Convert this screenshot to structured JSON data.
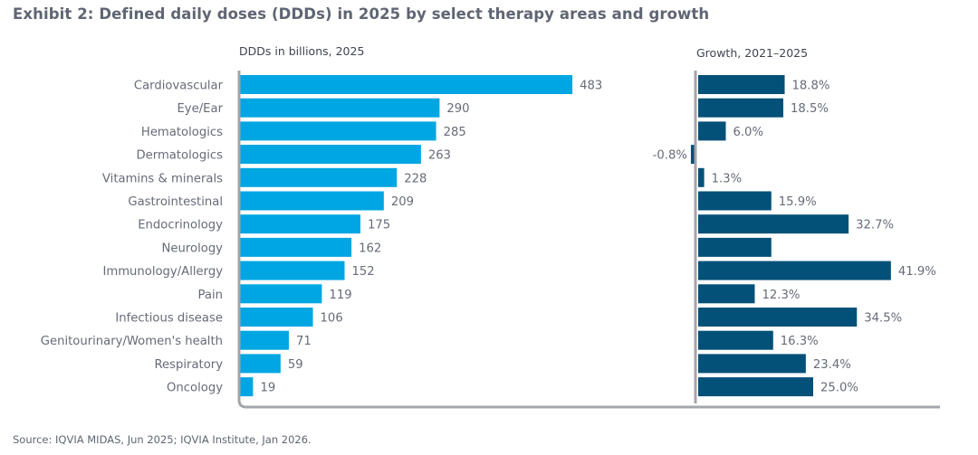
{
  "title": "Exhibit 2: Defined daily doses (DDDs) in 2025 by select therapy areas and growth",
  "source": "Source: IQVIA MIDAS, Jun 2025; IQVIA Institute, Jan 2026.",
  "colors": {
    "ddd_bar": "#00a6e2",
    "growth_bar": "#035078",
    "axis": "#a3a6ad",
    "text": "#666b78"
  },
  "chart_data": [
    {
      "type": "bar",
      "orientation": "horizontal",
      "title": "DDDs in billions, 2025",
      "xlabel": "",
      "ylabel": "",
      "categories": [
        "Cardiovascular",
        "Eye/Ear",
        "Hematologics",
        "Dermatologics",
        "Vitamins & minerals",
        "Gastrointestinal",
        "Endocrinology",
        "Neurology",
        "Immunology/Allergy",
        "Pain",
        "Infectious disease",
        "Genitourinary/Women's health",
        "Respiratory",
        "Oncology"
      ],
      "values": [
        483,
        290,
        285,
        263,
        228,
        209,
        175,
        162,
        152,
        119,
        106,
        71,
        59,
        19
      ],
      "labels": [
        "483",
        "290",
        "285",
        "263",
        "228",
        "209",
        "175",
        "162",
        "152",
        "119",
        "106",
        "71",
        "59",
        "19"
      ],
      "xlim": [
        0,
        483
      ],
      "grid": false,
      "legend": "none"
    },
    {
      "type": "bar",
      "orientation": "horizontal",
      "title": "Growth, 2021–2025",
      "xlabel": "",
      "ylabel": "",
      "categories": [
        "Cardiovascular",
        "Eye/Ear",
        "Hematologics",
        "Dermatologics",
        "Vitamins & minerals",
        "Gastrointestinal",
        "Endocrinology",
        "Neurology",
        "Immunology/Allergy",
        "Pain",
        "Infectious disease",
        "Genitourinary/Women's health",
        "Respiratory",
        "Oncology"
      ],
      "values": [
        18.8,
        18.5,
        6.0,
        -0.8,
        1.3,
        15.9,
        32.7,
        15.9,
        41.9,
        12.3,
        34.5,
        16.3,
        23.4,
        25.0
      ],
      "labels": [
        "18.8%",
        "18.5%",
        "6.0%",
        "-0.8%",
        "1.3%",
        "15.9%",
        "32.7%",
        "",
        "41.9%",
        "12.3%",
        "34.5%",
        "16.3%",
        "23.4%",
        "25.0%"
      ],
      "unit": "%",
      "xlim": [
        -0.8,
        41.9
      ],
      "grid": false,
      "legend": "none"
    }
  ]
}
